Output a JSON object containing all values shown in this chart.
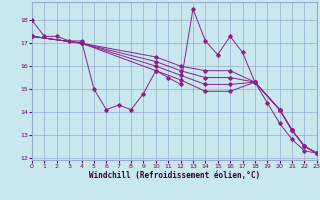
{
  "xlabel": "Windchill (Refroidissement éolien,°C)",
  "background_color": "#c8e8ee",
  "grid_color": "#99aacc",
  "line_color": "#882288",
  "xlim": [
    0,
    23
  ],
  "ylim": [
    11.9,
    18.8
  ],
  "yticks": [
    12,
    13,
    14,
    15,
    16,
    17,
    18
  ],
  "xticks": [
    0,
    1,
    2,
    3,
    4,
    5,
    6,
    7,
    8,
    9,
    10,
    11,
    12,
    13,
    14,
    15,
    16,
    17,
    18,
    19,
    20,
    21,
    22,
    23
  ],
  "series": [
    {
      "x": [
        0,
        1,
        2,
        3,
        4,
        5,
        6,
        7,
        8,
        9,
        10,
        11,
        12,
        13,
        14,
        15,
        16,
        17,
        18,
        19,
        20,
        21,
        22,
        23
      ],
      "y": [
        18.0,
        17.3,
        17.3,
        17.1,
        17.1,
        15.0,
        14.1,
        14.3,
        14.1,
        14.8,
        15.8,
        15.5,
        15.2,
        18.5,
        17.1,
        16.5,
        17.3,
        16.6,
        15.3,
        14.4,
        13.5,
        12.8,
        12.3,
        12.2
      ]
    },
    {
      "x": [
        0,
        4,
        10,
        12,
        14,
        16,
        18,
        20,
        21,
        22,
        23
      ],
      "y": [
        17.3,
        17.0,
        16.4,
        16.0,
        15.8,
        15.8,
        15.3,
        14.1,
        13.2,
        12.5,
        12.2
      ]
    },
    {
      "x": [
        0,
        4,
        10,
        12,
        14,
        16,
        18,
        20,
        21,
        22,
        23
      ],
      "y": [
        17.3,
        17.0,
        16.2,
        15.8,
        15.5,
        15.5,
        15.3,
        14.1,
        13.2,
        12.5,
        12.2
      ]
    },
    {
      "x": [
        0,
        4,
        10,
        12,
        14,
        16,
        18,
        20,
        21,
        22,
        23
      ],
      "y": [
        17.3,
        17.0,
        16.0,
        15.6,
        15.2,
        15.2,
        15.3,
        14.1,
        13.2,
        12.5,
        12.2
      ]
    },
    {
      "x": [
        0,
        4,
        10,
        12,
        14,
        16,
        18,
        20,
        21,
        22,
        23
      ],
      "y": [
        17.3,
        17.0,
        15.8,
        15.4,
        14.9,
        14.9,
        15.3,
        14.1,
        13.2,
        12.5,
        12.2
      ]
    }
  ]
}
